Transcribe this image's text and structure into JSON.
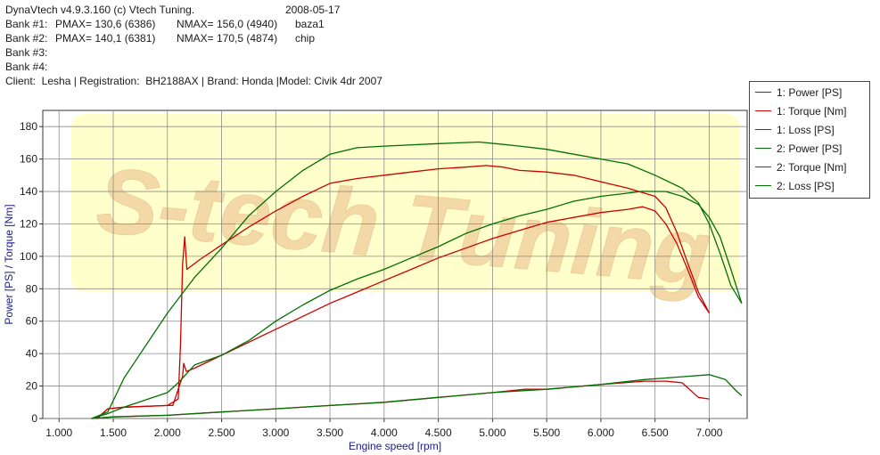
{
  "header": {
    "software": "DynaVtech v4.9.3.160 (c) Vtech Tuning.",
    "date": "2008-05-17",
    "banks": [
      {
        "label": "Bank #1:",
        "pmax": "PMAX= 130,6 (6386)",
        "nmax": "NMAX= 156,0 (4940)",
        "name": "baza1"
      },
      {
        "label": "Bank #2:",
        "pmax": "PMAX= 140,1 (6381)",
        "nmax": "NMAX= 170,5 (4874)",
        "name": "chip"
      },
      {
        "label": "Bank #3:",
        "pmax": "",
        "nmax": "",
        "name": ""
      },
      {
        "label": "Bank #4:",
        "pmax": "",
        "nmax": "",
        "name": ""
      }
    ],
    "client_line": "Client:  Lesha | Registration:  BH2188AX | Brand: Honda |Model: Civik 4dr 2007"
  },
  "watermark": "S-tech Tuning",
  "colors": {
    "bank1": "#cc0000",
    "bank2": "#007000",
    "axis_label": "#1a1a8c",
    "watermark_fill": "#ffffcc",
    "watermark_text": "#f3d9a8"
  },
  "legend": [
    {
      "label": "1: Power [PS]",
      "color": "#cc0000"
    },
    {
      "label": "1: Torque [Nm]",
      "color": "#cc0000"
    },
    {
      "label": "1: Loss [PS]",
      "color": "#cc0000"
    },
    {
      "label": "2: Power [PS]",
      "color": "#007000"
    },
    {
      "label": "2: Torque [Nm]",
      "color": "#007000"
    },
    {
      "label": "2: Loss [PS]",
      "color": "#007000"
    }
  ],
  "chart_data": {
    "type": "line",
    "xlabel": "Engine speed [rpm]",
    "ylabel": "Power [PS] / Torque [Nm]",
    "xlim": [
      850,
      7350
    ],
    "ylim": [
      0,
      190
    ],
    "x_ticks": [
      1000,
      1500,
      2000,
      2500,
      3000,
      3500,
      4000,
      4500,
      5000,
      5500,
      6000,
      6500,
      7000
    ],
    "x_tick_labels": [
      "1.000",
      "1.500",
      "2.000",
      "2.500",
      "3.000",
      "3.500",
      "4.000",
      "4.500",
      "5.000",
      "5.500",
      "6.000",
      "6.500",
      "7.000"
    ],
    "y_ticks": [
      0,
      20,
      40,
      60,
      80,
      100,
      120,
      140,
      160,
      180
    ],
    "y_tick_labels": [
      "0",
      "20",
      "40",
      "60",
      "80",
      "100",
      "120",
      "140",
      "160",
      "180"
    ],
    "grid": true,
    "legend_position": "top-right",
    "series": [
      {
        "name": "1: Power [PS]",
        "color": "#cc0000",
        "points": [
          [
            1350,
            0
          ],
          [
            1450,
            6
          ],
          [
            1600,
            7
          ],
          [
            2000,
            8
          ],
          [
            2050,
            8
          ],
          [
            2100,
            18
          ],
          [
            2140,
            26
          ],
          [
            2150,
            34
          ],
          [
            2175,
            29
          ],
          [
            2250,
            31
          ],
          [
            2500,
            39
          ],
          [
            2750,
            47
          ],
          [
            3000,
            55
          ],
          [
            3250,
            63
          ],
          [
            3500,
            71
          ],
          [
            3750,
            78
          ],
          [
            4000,
            85
          ],
          [
            4250,
            92
          ],
          [
            4500,
            99
          ],
          [
            4750,
            105
          ],
          [
            5000,
            111
          ],
          [
            5250,
            116
          ],
          [
            5500,
            121
          ],
          [
            5750,
            124
          ],
          [
            6000,
            127
          ],
          [
            6250,
            129
          ],
          [
            6386,
            130.6
          ],
          [
            6500,
            128
          ],
          [
            6600,
            120
          ],
          [
            6700,
            108
          ],
          [
            6800,
            92
          ],
          [
            6900,
            75
          ],
          [
            7000,
            65
          ]
        ]
      },
      {
        "name": "1: Torque [Nm]",
        "color": "#cc0000",
        "points": [
          [
            1350,
            0
          ],
          [
            1450,
            6
          ],
          [
            1600,
            7
          ],
          [
            2000,
            8
          ],
          [
            2100,
            12
          ],
          [
            2120,
            45
          ],
          [
            2140,
            95
          ],
          [
            2160,
            112
          ],
          [
            2180,
            92
          ],
          [
            2300,
            98
          ],
          [
            2500,
            107
          ],
          [
            2750,
            118
          ],
          [
            3000,
            128
          ],
          [
            3250,
            137
          ],
          [
            3500,
            145
          ],
          [
            3750,
            148
          ],
          [
            4000,
            150
          ],
          [
            4250,
            152
          ],
          [
            4500,
            154
          ],
          [
            4750,
            155
          ],
          [
            4940,
            156
          ],
          [
            5100,
            155
          ],
          [
            5250,
            153
          ],
          [
            5500,
            152
          ],
          [
            5750,
            150
          ],
          [
            6000,
            146
          ],
          [
            6250,
            142
          ],
          [
            6500,
            137
          ],
          [
            6600,
            130
          ],
          [
            6700,
            115
          ],
          [
            6800,
            96
          ],
          [
            6900,
            78
          ],
          [
            7000,
            65
          ]
        ]
      },
      {
        "name": "1: Loss [PS]",
        "color": "#cc0000",
        "points": [
          [
            1300,
            0
          ],
          [
            1500,
            1
          ],
          [
            2000,
            2
          ],
          [
            2500,
            4
          ],
          [
            3000,
            6
          ],
          [
            3500,
            8
          ],
          [
            4000,
            10
          ],
          [
            4500,
            13
          ],
          [
            5000,
            16
          ],
          [
            5300,
            18
          ],
          [
            5500,
            18
          ],
          [
            6000,
            21
          ],
          [
            6400,
            23
          ],
          [
            6600,
            23
          ],
          [
            6750,
            22
          ],
          [
            6900,
            13
          ],
          [
            7000,
            12
          ]
        ]
      },
      {
        "name": "2: Power [PS]",
        "color": "#007000",
        "points": [
          [
            1300,
            0
          ],
          [
            1450,
            3
          ],
          [
            1600,
            7
          ],
          [
            2000,
            16
          ],
          [
            2100,
            22
          ],
          [
            2250,
            33
          ],
          [
            2500,
            39
          ],
          [
            2750,
            48
          ],
          [
            3000,
            60
          ],
          [
            3250,
            70
          ],
          [
            3500,
            79
          ],
          [
            3750,
            86
          ],
          [
            4000,
            92
          ],
          [
            4250,
            99
          ],
          [
            4500,
            106
          ],
          [
            4750,
            114
          ],
          [
            5000,
            120
          ],
          [
            5250,
            125
          ],
          [
            5500,
            129
          ],
          [
            5750,
            134
          ],
          [
            6000,
            137
          ],
          [
            6250,
            139
          ],
          [
            6381,
            140.1
          ],
          [
            6600,
            140
          ],
          [
            6750,
            137
          ],
          [
            6900,
            132
          ],
          [
            7000,
            124
          ],
          [
            7100,
            112
          ],
          [
            7200,
            92
          ],
          [
            7300,
            71
          ]
        ]
      },
      {
        "name": "2: Torque [Nm]",
        "color": "#007000",
        "points": [
          [
            1300,
            0
          ],
          [
            1450,
            4
          ],
          [
            1600,
            25
          ],
          [
            1750,
            40
          ],
          [
            2000,
            65
          ],
          [
            2250,
            87
          ],
          [
            2500,
            105
          ],
          [
            2750,
            125
          ],
          [
            3000,
            140
          ],
          [
            3250,
            153
          ],
          [
            3500,
            163
          ],
          [
            3750,
            167
          ],
          [
            4000,
            168
          ],
          [
            4500,
            169.5
          ],
          [
            4874,
            170.5
          ],
          [
            5100,
            169
          ],
          [
            5250,
            168
          ],
          [
            5500,
            166
          ],
          [
            5750,
            163
          ],
          [
            6000,
            160
          ],
          [
            6250,
            157
          ],
          [
            6500,
            150
          ],
          [
            6750,
            142
          ],
          [
            6900,
            133
          ],
          [
            7000,
            120
          ],
          [
            7100,
            102
          ],
          [
            7200,
            82
          ],
          [
            7300,
            71
          ]
        ]
      },
      {
        "name": "2: Loss [PS]",
        "color": "#007000",
        "points": [
          [
            1300,
            0
          ],
          [
            1500,
            1
          ],
          [
            2000,
            2
          ],
          [
            2500,
            4
          ],
          [
            3000,
            6
          ],
          [
            3500,
            8
          ],
          [
            4000,
            10
          ],
          [
            4500,
            13
          ],
          [
            5000,
            16
          ],
          [
            5500,
            18
          ],
          [
            6000,
            21
          ],
          [
            6400,
            24
          ],
          [
            6600,
            25
          ],
          [
            7000,
            27
          ],
          [
            7150,
            24
          ],
          [
            7250,
            17
          ],
          [
            7300,
            14
          ]
        ]
      }
    ]
  }
}
